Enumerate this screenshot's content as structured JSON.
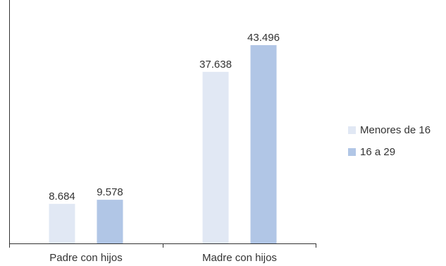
{
  "chart_data": {
    "type": "bar",
    "categories": [
      "Padre con hijos",
      "Madre con hijos"
    ],
    "series": [
      {
        "name": "Menores de 16",
        "values": [
          8.684,
          37.638
        ],
        "labels": [
          "8.684",
          "37.638"
        ],
        "color": "#e1e8f4"
      },
      {
        "name": "16 a 29",
        "values": [
          9.578,
          43.496
        ],
        "labels": [
          "9.578",
          "43.496"
        ],
        "color": "#b1c6e6"
      }
    ],
    "ylim": [
      0,
      53.4
    ],
    "grid": false,
    "legend": "right",
    "title": "",
    "xlabel": "",
    "ylabel": ""
  }
}
